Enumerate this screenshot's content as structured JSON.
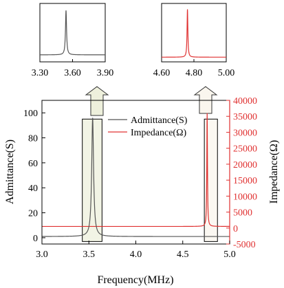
{
  "chart_data": [
    {
      "type": "line",
      "role": "main",
      "xlabel": "Frequency(MHz)",
      "ylabel_left": "Admittance(S)",
      "ylabel_right": "Impedance(Ω)",
      "xlim": [
        3.0,
        5.0
      ],
      "ylim_left": [
        -5,
        110
      ],
      "ylim_right": [
        -5000,
        40000
      ],
      "x_ticks": [
        "3.0",
        "3.5",
        "4.0",
        "4.5",
        "5.0"
      ],
      "y_ticks_left": [
        "0",
        "20",
        "40",
        "60",
        "80",
        "100"
      ],
      "y_ticks_right": [
        "-5000",
        "0",
        "5000",
        "10000",
        "15000",
        "20000",
        "25000",
        "30000",
        "35000",
        "40000"
      ],
      "legend": {
        "placement": "top-center"
      },
      "grid": false,
      "series": [
        {
          "name": "Admittance(S)",
          "axis": "left",
          "color": "#555555",
          "baseline": 1.0,
          "peak_x": 3.54,
          "peak_y": 96
        },
        {
          "name": "Impedance(Ω)",
          "axis": "right",
          "color": "#e03030",
          "baseline": 500,
          "peak_x": 4.76,
          "peak_y": 36000
        }
      ],
      "highlight_boxes": [
        {
          "x_range": [
            3.43,
            3.64
          ],
          "y_range_left": [
            -3,
            95
          ]
        },
        {
          "x_range": [
            4.73,
            4.87
          ],
          "y_range_left": [
            -3,
            95
          ]
        }
      ]
    },
    {
      "type": "line",
      "role": "inset-left",
      "xlim": [
        3.3,
        3.9
      ],
      "x_ticks": [
        "3.30",
        "3.60",
        "3.90"
      ],
      "series": [
        {
          "color": "#555555",
          "peak_x": 3.54,
          "peak_rel": 0.88
        }
      ]
    },
    {
      "type": "line",
      "role": "inset-right",
      "xlim": [
        4.6,
        5.0
      ],
      "x_ticks": [
        "4.60",
        "4.80",
        "5.00"
      ],
      "series": [
        {
          "color": "#e03030",
          "peak_x": 4.76,
          "peak_rel": 0.9
        }
      ]
    }
  ],
  "colors": {
    "axis_right": "#e03030",
    "arrow_fill": "#eef0dc",
    "box_fill": "#eef0dc"
  }
}
